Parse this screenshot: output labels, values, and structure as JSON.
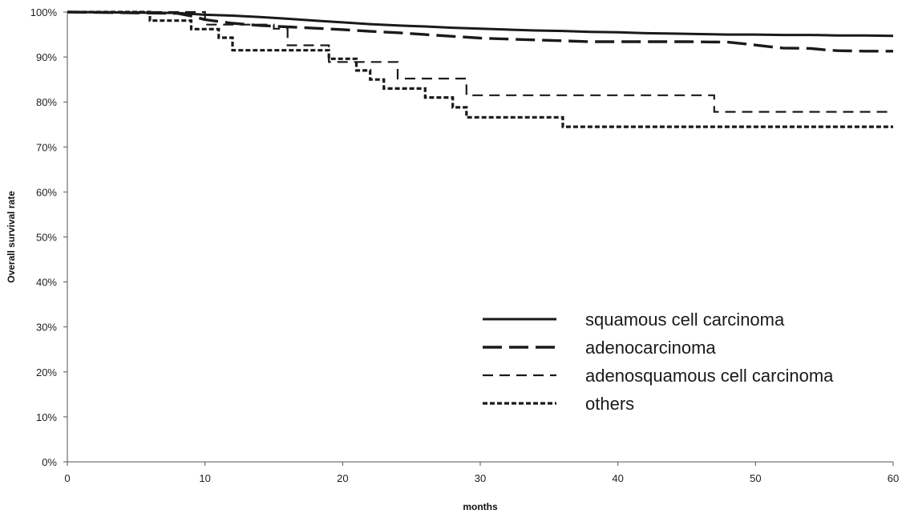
{
  "chart_data": {
    "type": "line",
    "subtype": "kaplan-meier step curves",
    "title": "",
    "xlabel": "months",
    "ylabel": "Overall survival rate",
    "xlim": [
      0,
      60
    ],
    "ylim": [
      0,
      100
    ],
    "x_ticks": [
      0,
      10,
      20,
      30,
      40,
      50,
      60
    ],
    "x_tick_labels": [
      "0",
      "10",
      "20",
      "30",
      "40",
      "50",
      "60"
    ],
    "y_ticks": [
      0,
      10,
      20,
      30,
      40,
      50,
      60,
      70,
      80,
      90,
      100
    ],
    "y_tick_labels": [
      "0%",
      "10%",
      "20%",
      "30%",
      "40%",
      "50%",
      "60%",
      "70%",
      "80%",
      "90%",
      "100%"
    ],
    "grid": false,
    "legend_position": "bottom-right",
    "series": [
      {
        "name": "squamous cell carcinoma",
        "line_style": "solid",
        "color": "#1a1a1a",
        "points": [
          [
            0,
            100
          ],
          [
            8,
            99.8
          ],
          [
            10,
            99.4
          ],
          [
            12,
            99.2
          ],
          [
            14,
            98.9
          ],
          [
            16,
            98.5
          ],
          [
            18,
            98.1
          ],
          [
            20,
            97.7
          ],
          [
            22,
            97.3
          ],
          [
            24,
            97.0
          ],
          [
            26,
            96.8
          ],
          [
            28,
            96.5
          ],
          [
            30,
            96.3
          ],
          [
            32,
            96.1
          ],
          [
            34,
            95.9
          ],
          [
            36,
            95.8
          ],
          [
            38,
            95.6
          ],
          [
            40,
            95.5
          ],
          [
            42,
            95.3
          ],
          [
            44,
            95.2
          ],
          [
            46,
            95.1
          ],
          [
            48,
            95.0
          ],
          [
            50,
            95.0
          ],
          [
            52,
            94.9
          ],
          [
            54,
            94.9
          ],
          [
            56,
            94.8
          ],
          [
            58,
            94.8
          ],
          [
            60,
            94.7
          ]
        ]
      },
      {
        "name": "adenocarcinoma",
        "line_style": "long-dash",
        "color": "#1a1a1a",
        "points": [
          [
            0,
            100
          ],
          [
            8,
            99.7
          ],
          [
            9,
            99.1
          ],
          [
            10,
            98.3
          ],
          [
            12,
            97.5
          ],
          [
            14,
            97.0
          ],
          [
            16,
            96.7
          ],
          [
            18,
            96.4
          ],
          [
            20,
            96.1
          ],
          [
            22,
            95.7
          ],
          [
            24,
            95.4
          ],
          [
            26,
            95.0
          ],
          [
            28,
            94.6
          ],
          [
            30,
            94.2
          ],
          [
            32,
            94.0
          ],
          [
            34,
            93.8
          ],
          [
            36,
            93.6
          ],
          [
            38,
            93.4
          ],
          [
            40,
            93.4
          ],
          [
            45,
            93.4
          ],
          [
            48,
            93.3
          ],
          [
            49,
            93.0
          ],
          [
            51,
            92.3
          ],
          [
            52,
            92.0
          ],
          [
            54,
            91.9
          ],
          [
            55,
            91.6
          ],
          [
            56,
            91.4
          ],
          [
            58,
            91.3
          ],
          [
            60,
            91.3
          ]
        ]
      },
      {
        "name": "adenosquamous cell carcinoma",
        "line_style": "medium-dash",
        "color": "#1a1a1a",
        "points": [
          [
            0,
            100
          ],
          [
            10,
            100
          ],
          [
            10,
            97.2
          ],
          [
            15,
            97.2
          ],
          [
            15,
            96.3
          ],
          [
            16,
            96.3
          ],
          [
            16,
            92.6
          ],
          [
            19,
            92.6
          ],
          [
            19,
            88.9
          ],
          [
            24,
            88.9
          ],
          [
            24,
            85.2
          ],
          [
            29,
            85.2
          ],
          [
            29,
            81.5
          ],
          [
            47,
            81.5
          ],
          [
            47,
            77.8
          ],
          [
            60,
            77.8
          ]
        ]
      },
      {
        "name": "others",
        "line_style": "short-dash",
        "color": "#1a1a1a",
        "points": [
          [
            0,
            100
          ],
          [
            6,
            100
          ],
          [
            6,
            98.1
          ],
          [
            9,
            98.1
          ],
          [
            9,
            96.2
          ],
          [
            11,
            96.2
          ],
          [
            11,
            94.3
          ],
          [
            12,
            94.3
          ],
          [
            12,
            91.5
          ],
          [
            19,
            91.5
          ],
          [
            19,
            89.6
          ],
          [
            21,
            89.6
          ],
          [
            21,
            87.0
          ],
          [
            22,
            87.0
          ],
          [
            22,
            85.0
          ],
          [
            23,
            85.0
          ],
          [
            23,
            83.0
          ],
          [
            26,
            83.0
          ],
          [
            26,
            81.0
          ],
          [
            28,
            81.0
          ],
          [
            28,
            78.8
          ],
          [
            29,
            78.8
          ],
          [
            29,
            76.6
          ],
          [
            36,
            76.6
          ],
          [
            36,
            74.5
          ],
          [
            60,
            74.5
          ]
        ]
      }
    ]
  }
}
